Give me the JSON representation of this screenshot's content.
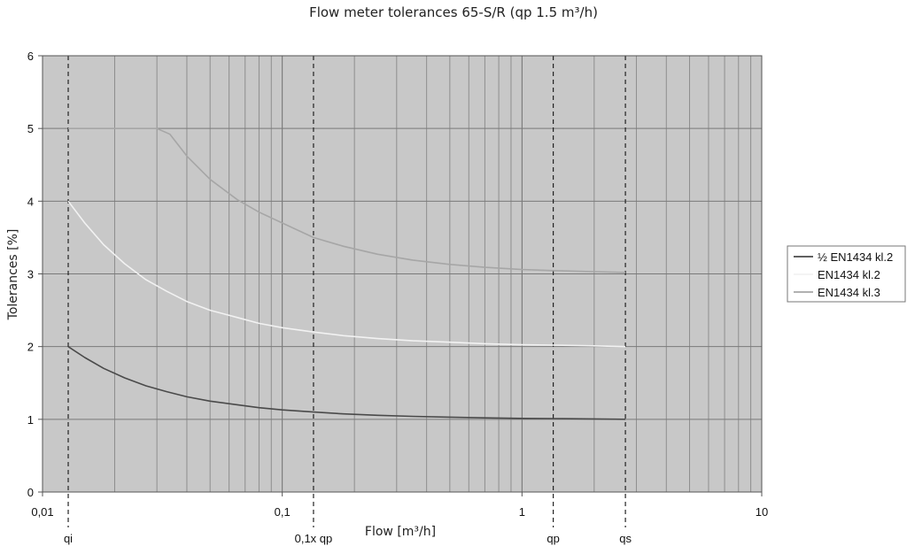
{
  "chart_data": {
    "type": "line",
    "title": "Flow meter tolerances 65-S/R (qp 1.5 m³/h)",
    "xlabel": "Flow [m³/h]",
    "ylabel": "Tolerances [%]",
    "x_scale": "log",
    "xlim": [
      0.01,
      10
    ],
    "ylim": [
      0,
      6
    ],
    "grid": true,
    "legend_position": "right",
    "x_tick_labels": [
      {
        "value": 0.01,
        "label": "0,01"
      },
      {
        "value": 0.1,
        "label": "0,1"
      },
      {
        "value": 1,
        "label": "1"
      },
      {
        "value": 10,
        "label": "10"
      }
    ],
    "y_ticks": [
      0,
      1,
      2,
      3,
      4,
      5,
      6
    ],
    "markers": [
      {
        "label": "qi",
        "x": 0.0128
      },
      {
        "label": "0,1x qp",
        "x": 0.135
      },
      {
        "label": "qp",
        "x": 1.35
      },
      {
        "label": "qs",
        "x": 2.7
      }
    ],
    "series": [
      {
        "name": "½ EN1434 kl.2",
        "color": "#4a4a4a",
        "x": [
          0.0128,
          0.015,
          0.018,
          0.022,
          0.027,
          0.033,
          0.04,
          0.05,
          0.065,
          0.08,
          0.1,
          0.135,
          0.18,
          0.25,
          0.35,
          0.5,
          0.7,
          1.0,
          1.35,
          2.0,
          2.7
        ],
        "y": [
          2.0,
          1.85,
          1.7,
          1.57,
          1.46,
          1.38,
          1.31,
          1.25,
          1.2,
          1.16,
          1.13,
          1.1,
          1.075,
          1.055,
          1.04,
          1.03,
          1.02,
          1.013,
          1.01,
          1.005,
          1.0
        ]
      },
      {
        "name": "EN1434 kl.2",
        "color": "#f2f2f2",
        "x": [
          0.0128,
          0.015,
          0.018,
          0.022,
          0.027,
          0.033,
          0.04,
          0.05,
          0.065,
          0.08,
          0.1,
          0.135,
          0.18,
          0.25,
          0.35,
          0.5,
          0.7,
          1.0,
          1.35,
          2.0,
          2.7
        ],
        "y": [
          4.0,
          3.7,
          3.4,
          3.14,
          2.92,
          2.76,
          2.62,
          2.5,
          2.4,
          2.32,
          2.26,
          2.2,
          2.15,
          2.11,
          2.08,
          2.06,
          2.04,
          2.025,
          2.02,
          2.01,
          2.0
        ]
      },
      {
        "name": "EN1434 kl.3",
        "color": "#a6a6a6",
        "x": [
          0.0128,
          0.015,
          0.02,
          0.025,
          0.03,
          0.034,
          0.04,
          0.05,
          0.065,
          0.08,
          0.1,
          0.135,
          0.18,
          0.25,
          0.35,
          0.5,
          0.7,
          1.0,
          1.35,
          2.0,
          2.7
        ],
        "y": [
          5.0,
          5.0,
          5.0,
          5.0,
          5.0,
          4.92,
          4.62,
          4.3,
          4.02,
          3.85,
          3.7,
          3.5,
          3.38,
          3.27,
          3.19,
          3.13,
          3.09,
          3.06,
          3.045,
          3.03,
          3.02
        ]
      }
    ]
  }
}
